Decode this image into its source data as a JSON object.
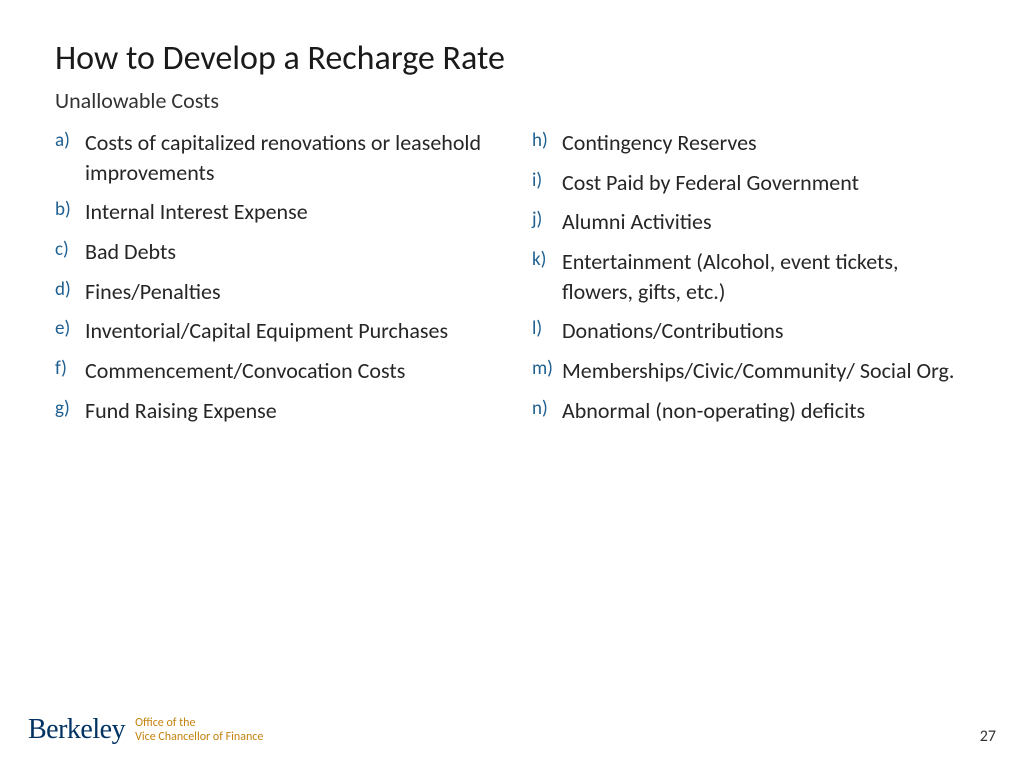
{
  "title": "How to Develop a Recharge Rate",
  "subtitle": "Unallowable Costs",
  "colors": {
    "marker": "#1f6091",
    "text": "#262626",
    "berkeley": "#003262",
    "gold": "#c4820e",
    "background": "#ffffff"
  },
  "typography": {
    "title_fontsize": 34,
    "subtitle_fontsize": 22,
    "item_fontsize": 22,
    "marker_fontsize": 19
  },
  "left_items": [
    {
      "marker": "a)",
      "text": "Costs of capitalized renovations or leasehold improvements"
    },
    {
      "marker": "b)",
      "text": "Internal Interest Expense"
    },
    {
      "marker": "c)",
      "text": "Bad Debts"
    },
    {
      "marker": "d)",
      "text": "Fines/Penalties"
    },
    {
      "marker": "e)",
      "text": "Inventorial/Capital Equipment Purchases"
    },
    {
      "marker": "f)",
      "text": "Commencement/Convocation Costs"
    },
    {
      "marker": "g)",
      "text": "Fund Raising Expense"
    }
  ],
  "right_items": [
    {
      "marker": "h)",
      "text": "Contingency Reserves"
    },
    {
      "marker": "i)",
      "text": "Cost Paid by Federal Government"
    },
    {
      "marker": "j)",
      "text": "Alumni Activities"
    },
    {
      "marker": "k)",
      "text": "Entertainment (Alcohol, event tickets, flowers, gifts, etc.)"
    },
    {
      "marker": "l)",
      "text": "Donations/Contributions"
    },
    {
      "marker": "m)",
      "text": "Memberships/Civic/Community/ Social Org."
    },
    {
      "marker": "n)",
      "text": "Abnormal (non-operating) deficits"
    }
  ],
  "footer": {
    "logo_text": "Berkeley",
    "office_line1": "Office of the",
    "office_line2": "Vice Chancellor of Finance",
    "page_number": "27"
  }
}
